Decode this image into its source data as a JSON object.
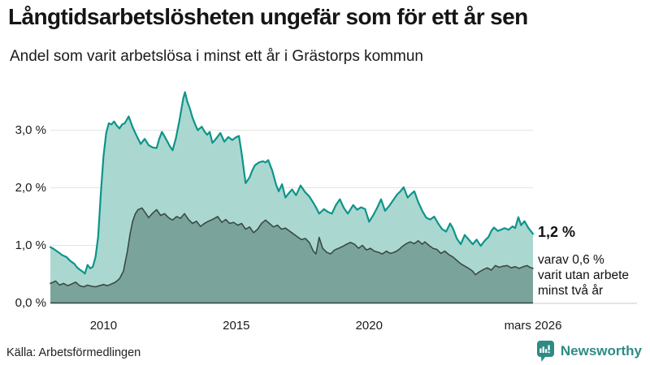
{
  "chart_data": {
    "type": "area",
    "title": "Långtidsarbetslösheten ungefär som för ett år sen",
    "subtitle": "Andel som varit arbetslösa i minst ett år i Grästorps kommun",
    "source": "Källa: Arbetsförmedlingen",
    "unit": "%",
    "xlim": [
      2008.0,
      2026.17
    ],
    "ylim": [
      0,
      3.8
    ],
    "grid": "horizontal",
    "legend_position": "none",
    "x_ticks": [
      {
        "t": 2010,
        "label": "2010"
      },
      {
        "t": 2015,
        "label": "2015"
      },
      {
        "t": 2020,
        "label": "2020"
      },
      {
        "t": 2026.17,
        "label": "mars 2026"
      }
    ],
    "y_ticks": [
      {
        "v": 0,
        "label": "0,0 %"
      },
      {
        "v": 1,
        "label": "1,0 %"
      },
      {
        "v": 2,
        "label": "2,0 %"
      },
      {
        "v": 3,
        "label": "3,0 %"
      }
    ],
    "annotations": {
      "end_total": "1,2 %",
      "end_subset": [
        "varav 0,6 %",
        "varit utan arbete",
        "minst två år"
      ]
    },
    "colors": {
      "total_line": "#0e9489",
      "total_fill": "#aad8d1",
      "subset_line": "#3a4a45",
      "subset_fill": "#7aa49b",
      "gridline": "#e3e3e3",
      "axis_line": "#3f4f4a",
      "axis_extension": "#c9c9c9"
    },
    "series": [
      {
        "name": "Andel arbetslösa minst ett år",
        "line_color": "#0e9489",
        "fill_color": "#aad8d1",
        "points": [
          [
            2008.0,
            0.97
          ],
          [
            2008.15,
            0.93
          ],
          [
            2008.3,
            0.88
          ],
          [
            2008.45,
            0.83
          ],
          [
            2008.6,
            0.8
          ],
          [
            2008.75,
            0.73
          ],
          [
            2008.9,
            0.68
          ],
          [
            2009.0,
            0.62
          ],
          [
            2009.1,
            0.58
          ],
          [
            2009.2,
            0.55
          ],
          [
            2009.3,
            0.51
          ],
          [
            2009.4,
            0.66
          ],
          [
            2009.5,
            0.6
          ],
          [
            2009.6,
            0.63
          ],
          [
            2009.7,
            0.8
          ],
          [
            2009.8,
            1.15
          ],
          [
            2009.9,
            1.9
          ],
          [
            2010.0,
            2.55
          ],
          [
            2010.1,
            2.95
          ],
          [
            2010.2,
            3.12
          ],
          [
            2010.3,
            3.1
          ],
          [
            2010.4,
            3.15
          ],
          [
            2010.5,
            3.08
          ],
          [
            2010.6,
            3.03
          ],
          [
            2010.7,
            3.1
          ],
          [
            2010.8,
            3.12
          ],
          [
            2010.95,
            3.24
          ],
          [
            2011.1,
            3.05
          ],
          [
            2011.25,
            2.9
          ],
          [
            2011.4,
            2.76
          ],
          [
            2011.55,
            2.85
          ],
          [
            2011.7,
            2.74
          ],
          [
            2011.85,
            2.7
          ],
          [
            2012.0,
            2.69
          ],
          [
            2012.1,
            2.85
          ],
          [
            2012.2,
            2.97
          ],
          [
            2012.35,
            2.85
          ],
          [
            2012.5,
            2.72
          ],
          [
            2012.6,
            2.65
          ],
          [
            2012.72,
            2.85
          ],
          [
            2012.85,
            3.15
          ],
          [
            2013.0,
            3.55
          ],
          [
            2013.07,
            3.66
          ],
          [
            2013.15,
            3.5
          ],
          [
            2013.25,
            3.38
          ],
          [
            2013.35,
            3.22
          ],
          [
            2013.45,
            3.1
          ],
          [
            2013.55,
            3.0
          ],
          [
            2013.7,
            3.06
          ],
          [
            2013.8,
            2.98
          ],
          [
            2013.9,
            2.92
          ],
          [
            2014.0,
            2.97
          ],
          [
            2014.1,
            2.78
          ],
          [
            2014.2,
            2.83
          ],
          [
            2014.3,
            2.89
          ],
          [
            2014.4,
            2.95
          ],
          [
            2014.55,
            2.8
          ],
          [
            2014.7,
            2.88
          ],
          [
            2014.85,
            2.83
          ],
          [
            2015.0,
            2.88
          ],
          [
            2015.1,
            2.9
          ],
          [
            2015.2,
            2.6
          ],
          [
            2015.35,
            2.08
          ],
          [
            2015.5,
            2.18
          ],
          [
            2015.6,
            2.3
          ],
          [
            2015.7,
            2.39
          ],
          [
            2015.85,
            2.44
          ],
          [
            2016.0,
            2.46
          ],
          [
            2016.1,
            2.44
          ],
          [
            2016.2,
            2.48
          ],
          [
            2016.35,
            2.3
          ],
          [
            2016.5,
            2.05
          ],
          [
            2016.6,
            1.94
          ],
          [
            2016.72,
            2.06
          ],
          [
            2016.85,
            1.83
          ],
          [
            2017.0,
            1.92
          ],
          [
            2017.1,
            1.97
          ],
          [
            2017.25,
            1.87
          ],
          [
            2017.42,
            2.04
          ],
          [
            2017.6,
            1.92
          ],
          [
            2017.75,
            1.85
          ],
          [
            2017.9,
            1.74
          ],
          [
            2018.0,
            1.66
          ],
          [
            2018.12,
            1.55
          ],
          [
            2018.3,
            1.63
          ],
          [
            2018.45,
            1.58
          ],
          [
            2018.6,
            1.55
          ],
          [
            2018.75,
            1.7
          ],
          [
            2018.9,
            1.8
          ],
          [
            2019.05,
            1.65
          ],
          [
            2019.2,
            1.55
          ],
          [
            2019.4,
            1.7
          ],
          [
            2019.55,
            1.62
          ],
          [
            2019.7,
            1.66
          ],
          [
            2019.85,
            1.63
          ],
          [
            2020.0,
            1.41
          ],
          [
            2020.15,
            1.52
          ],
          [
            2020.3,
            1.65
          ],
          [
            2020.45,
            1.8
          ],
          [
            2020.6,
            1.6
          ],
          [
            2020.75,
            1.68
          ],
          [
            2020.9,
            1.78
          ],
          [
            2021.05,
            1.88
          ],
          [
            2021.2,
            1.95
          ],
          [
            2021.3,
            2.01
          ],
          [
            2021.45,
            1.83
          ],
          [
            2021.6,
            1.9
          ],
          [
            2021.7,
            1.94
          ],
          [
            2021.85,
            1.75
          ],
          [
            2022.0,
            1.6
          ],
          [
            2022.15,
            1.48
          ],
          [
            2022.3,
            1.45
          ],
          [
            2022.45,
            1.5
          ],
          [
            2022.6,
            1.38
          ],
          [
            2022.75,
            1.28
          ],
          [
            2022.9,
            1.24
          ],
          [
            2023.05,
            1.38
          ],
          [
            2023.15,
            1.3
          ],
          [
            2023.3,
            1.12
          ],
          [
            2023.45,
            1.02
          ],
          [
            2023.6,
            1.18
          ],
          [
            2023.75,
            1.1
          ],
          [
            2023.9,
            1.02
          ],
          [
            2024.05,
            1.1
          ],
          [
            2024.2,
            0.99
          ],
          [
            2024.35,
            1.08
          ],
          [
            2024.5,
            1.15
          ],
          [
            2024.6,
            1.25
          ],
          [
            2024.7,
            1.31
          ],
          [
            2024.85,
            1.25
          ],
          [
            2025.0,
            1.28
          ],
          [
            2025.1,
            1.3
          ],
          [
            2025.25,
            1.27
          ],
          [
            2025.4,
            1.33
          ],
          [
            2025.5,
            1.3
          ],
          [
            2025.62,
            1.49
          ],
          [
            2025.72,
            1.35
          ],
          [
            2025.85,
            1.42
          ],
          [
            2026.0,
            1.3
          ],
          [
            2026.17,
            1.2
          ]
        ]
      },
      {
        "name": "varav utan arbete minst två år",
        "line_color": "#3a4a45",
        "fill_color": "#7aa49b",
        "points": [
          [
            2008.0,
            0.34
          ],
          [
            2008.2,
            0.38
          ],
          [
            2008.35,
            0.31
          ],
          [
            2008.5,
            0.34
          ],
          [
            2008.65,
            0.3
          ],
          [
            2008.8,
            0.33
          ],
          [
            2008.95,
            0.36
          ],
          [
            2009.1,
            0.3
          ],
          [
            2009.25,
            0.28
          ],
          [
            2009.4,
            0.31
          ],
          [
            2009.55,
            0.29
          ],
          [
            2009.7,
            0.28
          ],
          [
            2009.85,
            0.3
          ],
          [
            2010.0,
            0.32
          ],
          [
            2010.15,
            0.3
          ],
          [
            2010.3,
            0.33
          ],
          [
            2010.45,
            0.36
          ],
          [
            2010.6,
            0.42
          ],
          [
            2010.75,
            0.55
          ],
          [
            2010.9,
            0.9
          ],
          [
            2011.0,
            1.2
          ],
          [
            2011.1,
            1.42
          ],
          [
            2011.2,
            1.55
          ],
          [
            2011.3,
            1.62
          ],
          [
            2011.45,
            1.65
          ],
          [
            2011.6,
            1.55
          ],
          [
            2011.7,
            1.48
          ],
          [
            2011.85,
            1.56
          ],
          [
            2012.0,
            1.62
          ],
          [
            2012.15,
            1.52
          ],
          [
            2012.3,
            1.55
          ],
          [
            2012.45,
            1.48
          ],
          [
            2012.6,
            1.44
          ],
          [
            2012.75,
            1.5
          ],
          [
            2012.9,
            1.47
          ],
          [
            2013.05,
            1.55
          ],
          [
            2013.2,
            1.45
          ],
          [
            2013.35,
            1.38
          ],
          [
            2013.5,
            1.42
          ],
          [
            2013.65,
            1.33
          ],
          [
            2013.8,
            1.38
          ],
          [
            2013.95,
            1.42
          ],
          [
            2014.1,
            1.45
          ],
          [
            2014.3,
            1.5
          ],
          [
            2014.45,
            1.4
          ],
          [
            2014.6,
            1.45
          ],
          [
            2014.75,
            1.38
          ],
          [
            2014.9,
            1.4
          ],
          [
            2015.05,
            1.35
          ],
          [
            2015.2,
            1.38
          ],
          [
            2015.35,
            1.28
          ],
          [
            2015.5,
            1.32
          ],
          [
            2015.65,
            1.22
          ],
          [
            2015.8,
            1.28
          ],
          [
            2015.95,
            1.38
          ],
          [
            2016.1,
            1.44
          ],
          [
            2016.25,
            1.38
          ],
          [
            2016.4,
            1.32
          ],
          [
            2016.55,
            1.35
          ],
          [
            2016.7,
            1.28
          ],
          [
            2016.85,
            1.3
          ],
          [
            2017.0,
            1.25
          ],
          [
            2017.15,
            1.2
          ],
          [
            2017.3,
            1.15
          ],
          [
            2017.45,
            1.1
          ],
          [
            2017.6,
            1.12
          ],
          [
            2017.75,
            1.05
          ],
          [
            2017.9,
            0.9
          ],
          [
            2018.0,
            0.85
          ],
          [
            2018.12,
            1.14
          ],
          [
            2018.25,
            0.95
          ],
          [
            2018.4,
            0.88
          ],
          [
            2018.55,
            0.85
          ],
          [
            2018.7,
            0.92
          ],
          [
            2018.85,
            0.95
          ],
          [
            2019.0,
            0.98
          ],
          [
            2019.15,
            1.02
          ],
          [
            2019.3,
            1.05
          ],
          [
            2019.45,
            1.02
          ],
          [
            2019.6,
            0.95
          ],
          [
            2019.75,
            1.0
          ],
          [
            2019.9,
            0.92
          ],
          [
            2020.05,
            0.95
          ],
          [
            2020.2,
            0.9
          ],
          [
            2020.35,
            0.88
          ],
          [
            2020.5,
            0.85
          ],
          [
            2020.65,
            0.9
          ],
          [
            2020.8,
            0.86
          ],
          [
            2020.95,
            0.88
          ],
          [
            2021.1,
            0.92
          ],
          [
            2021.25,
            0.98
          ],
          [
            2021.4,
            1.03
          ],
          [
            2021.55,
            1.06
          ],
          [
            2021.7,
            1.03
          ],
          [
            2021.85,
            1.08
          ],
          [
            2022.0,
            1.02
          ],
          [
            2022.1,
            1.06
          ],
          [
            2022.25,
            1.0
          ],
          [
            2022.4,
            0.95
          ],
          [
            2022.55,
            0.93
          ],
          [
            2022.7,
            0.86
          ],
          [
            2022.85,
            0.9
          ],
          [
            2023.0,
            0.84
          ],
          [
            2023.15,
            0.8
          ],
          [
            2023.3,
            0.74
          ],
          [
            2023.45,
            0.68
          ],
          [
            2023.6,
            0.64
          ],
          [
            2023.75,
            0.6
          ],
          [
            2023.9,
            0.55
          ],
          [
            2024.0,
            0.49
          ],
          [
            2024.15,
            0.54
          ],
          [
            2024.3,
            0.58
          ],
          [
            2024.45,
            0.61
          ],
          [
            2024.6,
            0.57
          ],
          [
            2024.75,
            0.65
          ],
          [
            2024.9,
            0.62
          ],
          [
            2025.05,
            0.64
          ],
          [
            2025.2,
            0.65
          ],
          [
            2025.35,
            0.61
          ],
          [
            2025.5,
            0.63
          ],
          [
            2025.65,
            0.6
          ],
          [
            2025.8,
            0.63
          ],
          [
            2025.95,
            0.65
          ],
          [
            2026.05,
            0.62
          ],
          [
            2026.17,
            0.6
          ]
        ]
      }
    ]
  },
  "branding": {
    "name": "Newsworthy",
    "color": "#2e8b84",
    "icon": "newsworthy-speech-bubble-chart-icon"
  }
}
